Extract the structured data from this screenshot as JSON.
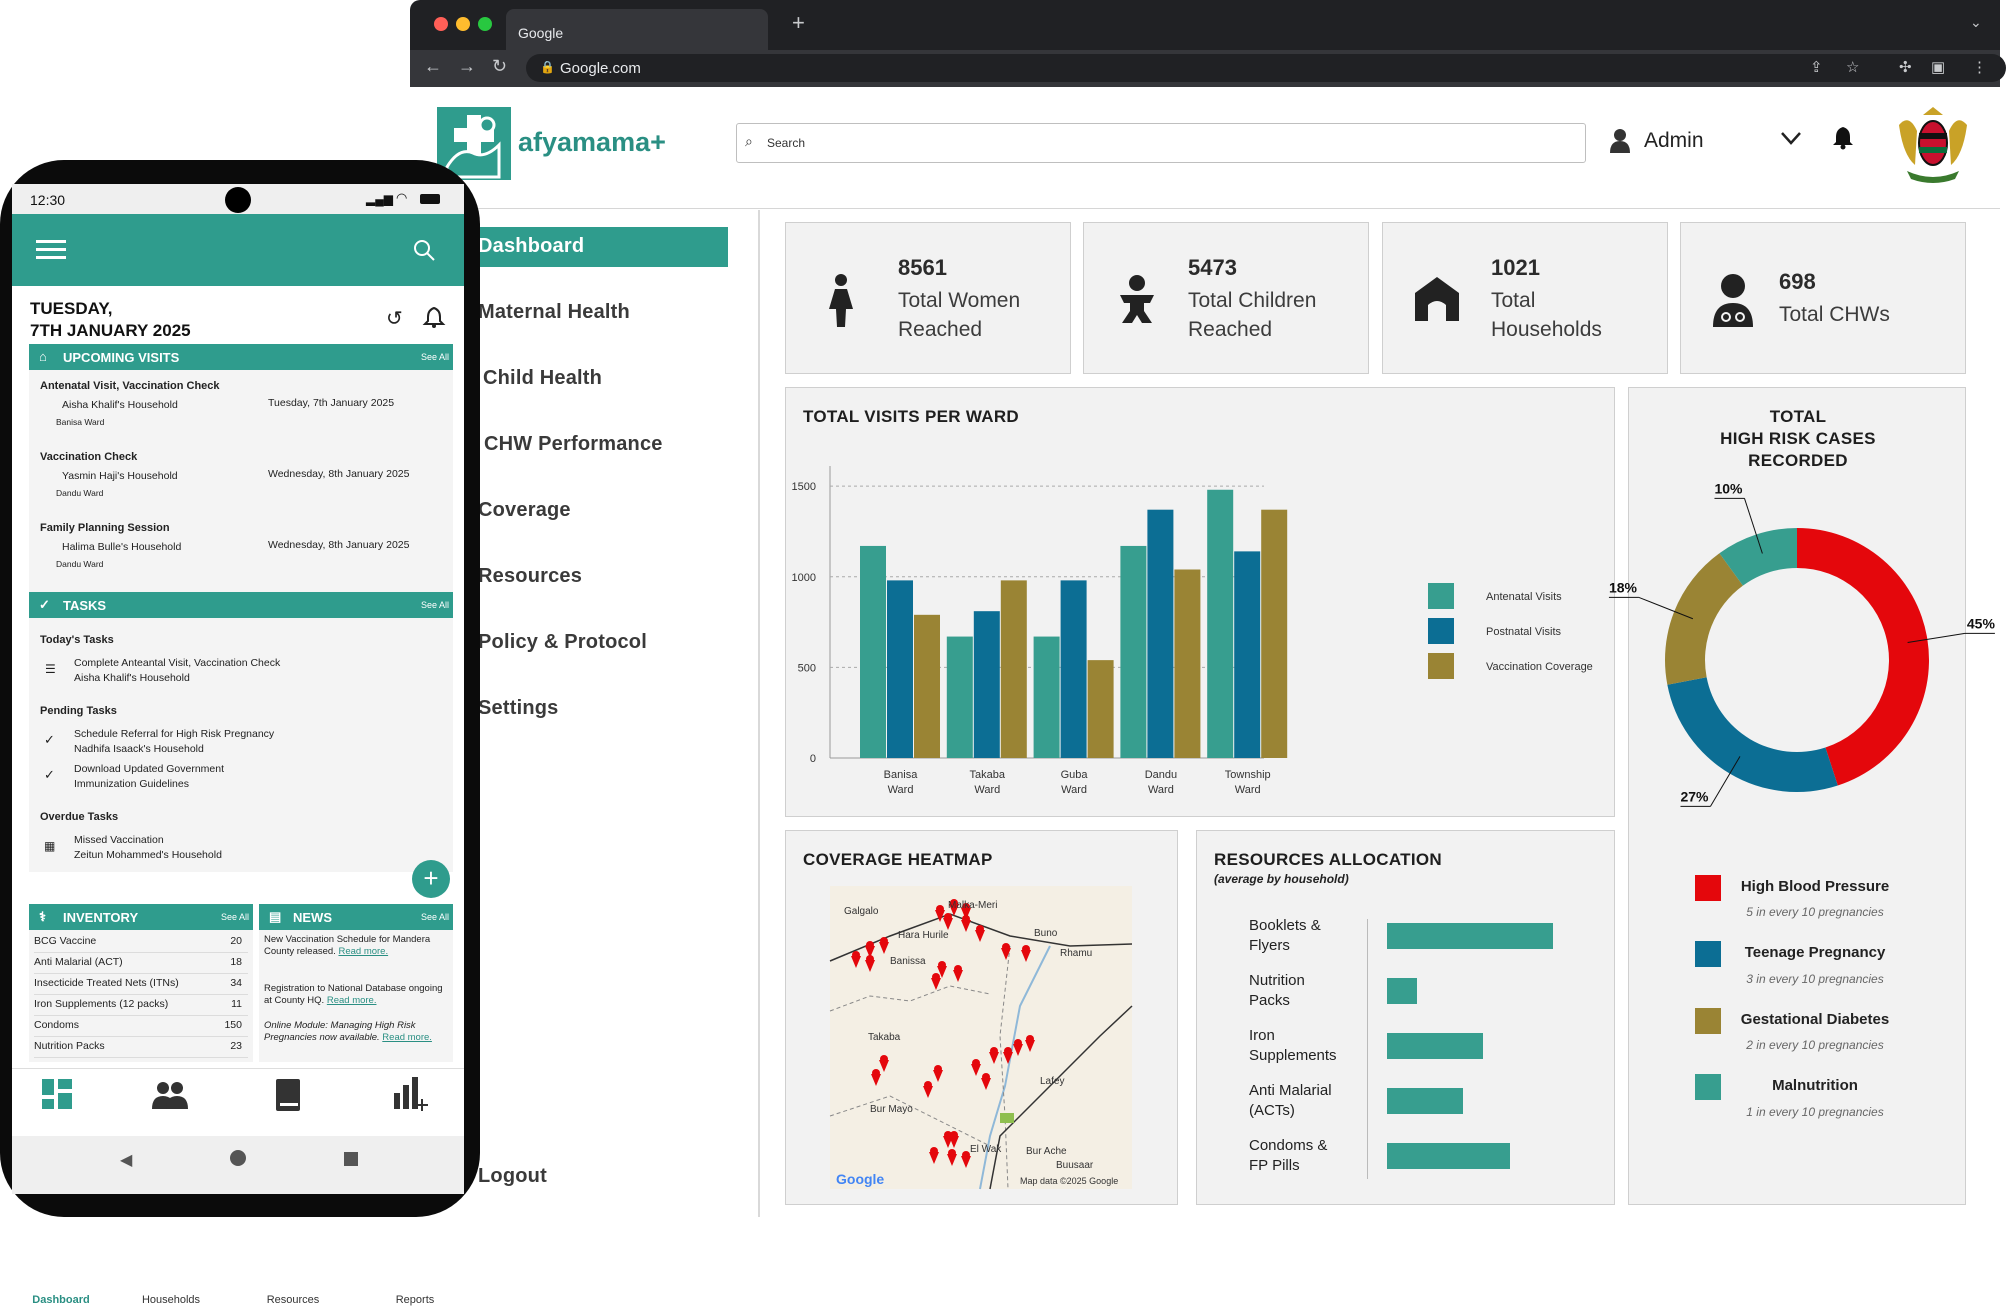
{
  "browser": {
    "tab_title": "Google",
    "url": "Google.com",
    "new_tab": "+"
  },
  "app": {
    "name": "afyamama+",
    "search_placeholder": "Search",
    "user": "Admin"
  },
  "sidebar": {
    "items": [
      {
        "label": "Dashboard",
        "active": true
      },
      {
        "label": "Maternal Health"
      },
      {
        "label": "Child Health"
      },
      {
        "label": "CHW Performance"
      },
      {
        "label": "Coverage"
      },
      {
        "label": "Resources"
      },
      {
        "label": "Policy & Protocol"
      },
      {
        "label": "Settings"
      }
    ],
    "logout": "Logout"
  },
  "stats": [
    {
      "value": "8561",
      "label_line1": "Total Women",
      "label_line2": "Reached",
      "icon": "woman-icon"
    },
    {
      "value": "5473",
      "label_line1": "Total Children",
      "label_line2": "Reached",
      "icon": "baby-icon"
    },
    {
      "value": "1021",
      "label_line1": "Total",
      "label_line2": "Households",
      "icon": "house-icon"
    },
    {
      "value": "698",
      "label_line1": "Total CHWs",
      "label_line2": "",
      "icon": "doctor-icon"
    }
  ],
  "visits_chart": {
    "title": "TOTAL VISITS PER WARD"
  },
  "chart_data": [
    {
      "type": "bar",
      "title": "TOTAL VISITS PER WARD",
      "categories": [
        "Banisa Ward",
        "Takaba Ward",
        "Guba Ward",
        "Dandu Ward",
        "Township Ward"
      ],
      "series": [
        {
          "name": "Antenatal Visits",
          "color": "#379e8f",
          "values": [
            1170,
            670,
            670,
            1170,
            1480
          ]
        },
        {
          "name": "Postnatal Visits",
          "color": "#0c6e94",
          "values": [
            980,
            810,
            980,
            1370,
            1140
          ]
        },
        {
          "name": "Vaccination Coverage",
          "color": "#9a8434",
          "values": [
            790,
            980,
            540,
            1040,
            1370
          ]
        }
      ],
      "y_ticks": [
        "0",
        "500",
        "1000",
        "1500"
      ],
      "ylim": [
        0,
        1600
      ],
      "grid": true,
      "legend": "right"
    },
    {
      "type": "pie",
      "title": "TOTAL HIGH RISK CASES RECORDED",
      "categories": [
        "High Blood Pressure",
        "Teenage Pregnancy",
        "Gestational Diabetes",
        "Malnutrition"
      ],
      "values": [
        45,
        27,
        18,
        10
      ],
      "labels": [
        "45%",
        "27%",
        "18%",
        "10%"
      ],
      "colors": [
        "#e4070c",
        "#0c6e94",
        "#9a8434",
        "#379e8f"
      ],
      "legend": "bottom"
    },
    {
      "type": "bar",
      "title": "RESOURCES ALLOCATION",
      "subtitle": "(average by household)",
      "categories": [
        "Booklets & Flyers",
        "Nutrition Packs",
        "Iron Supplements",
        "Anti Malarial (ACTs)",
        "Condoms & FP Pills"
      ],
      "values": [
        100,
        18,
        58,
        46,
        74
      ],
      "color": "#379e8f"
    }
  ],
  "risk_chart": {
    "title_l1": "TOTAL",
    "title_l2": "HIGH RISK CASES",
    "title_l3": "RECORDED",
    "legend": [
      {
        "name": "High Blood Pressure",
        "desc": "5 in every 10 pregnancies"
      },
      {
        "name": "Teenage Pregnancy",
        "desc": "3 in every 10 pregnancies"
      },
      {
        "name": "Gestational Diabetes",
        "desc": "2 in every 10 pregnancies"
      },
      {
        "name": "Malnutrition",
        "desc": "1 in every 10 pregnancies"
      }
    ]
  },
  "heatmap": {
    "title": "COVERAGE HEATMAP",
    "places": [
      "Galgalo",
      "Malka-Meri",
      "Hara Hurile",
      "Buno",
      "Banissa",
      "Rhamu",
      "Takaba",
      "Lafey",
      "Bur Mayo",
      "El Wak",
      "Bur Ache",
      "Buusaar"
    ],
    "credit": "Map data ©2025 Google",
    "brand": "Google"
  },
  "resources": {
    "title": "RESOURCES ALLOCATION",
    "subtitle": "(average by household)",
    "labels_l1": [
      "Booklets &",
      "Nutrition",
      "Iron",
      "Anti Malarial",
      "Condoms &"
    ],
    "labels_l2": [
      "Flyers",
      "Packs",
      "Supplements",
      "(ACTs)",
      "FP Pills"
    ]
  },
  "phone": {
    "time": "12:30",
    "date_l1": "TUESDAY,",
    "date_l2": "7TH JANUARY 2025",
    "upcoming": {
      "title": "UPCOMING VISITS",
      "see_all": "See All",
      "items": [
        {
          "type": "Antenatal Visit, Vaccination Check",
          "household": "Aisha Khalif's Household",
          "ward": "Banisa Ward",
          "date": "Tuesday, 7th January 2025"
        },
        {
          "type": "Vaccination Check",
          "household": "Yasmin Haji's Household",
          "ward": "Dandu Ward",
          "date": "Wednesday, 8th January 2025"
        },
        {
          "type": "Family Planning Session",
          "household": "Halima Bulle's Household",
          "ward": "Dandu Ward",
          "date": "Wednesday, 8th January 2025"
        }
      ]
    },
    "tasks": {
      "title": "TASKS",
      "see_all": "See All",
      "today": "Today's Tasks",
      "today_l1": "Complete Anteantal Visit, Vaccination Check",
      "today_l2": "Aisha Khalif's Household",
      "pending": "Pending Tasks",
      "p1_l1": "Schedule Referral for High Risk Pregnancy",
      "p1_l2": "Nadhifa Isaack's Household",
      "p2_l1": "Download Updated Government",
      "p2_l2": "Immunization Guidelines",
      "overdue": "Overdue Tasks",
      "o1_l1": "Missed Vaccination",
      "o1_l2": "Zeitun Mohammed's Household"
    },
    "inventory": {
      "title": "INVENTORY",
      "see_all": "See All",
      "rows": [
        {
          "item": "BCG Vaccine",
          "qty": "20"
        },
        {
          "item": "Anti Malarial (ACT)",
          "qty": "18"
        },
        {
          "item": "Insecticide Treated Nets (ITNs)",
          "qty": "34"
        },
        {
          "item": "Iron Supplements (12 packs)",
          "qty": "11"
        },
        {
          "item": "Condoms",
          "qty": "150"
        },
        {
          "item": "Nutrition Packs",
          "qty": "23"
        }
      ]
    },
    "news": {
      "title": "NEWS",
      "see_all": "See All",
      "n1": "New Vaccination Schedule for Mandera County released.",
      "n2": "Registration to National Database ongoing at County HQ.",
      "n3": "Online Module: Managing High Risk Pregnancies now available.",
      "read_more": "Read more."
    },
    "nav": [
      "Dashboard",
      "Households",
      "Resources",
      "Reports"
    ]
  }
}
